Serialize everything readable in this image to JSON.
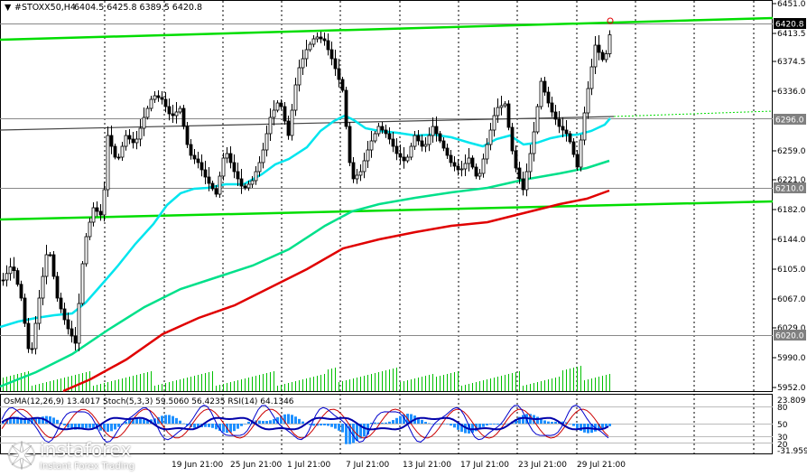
{
  "header": {
    "menu_arrow": "▼",
    "symbol": "#STOXX50,H4",
    "ohlc": "6404.5 6425.8 6389.5 6420.8"
  },
  "price_axis": [
    "6451.0",
    "6413.5",
    "6374.5",
    "6336.0",
    "6296.0",
    "6259.0",
    "6221.0",
    "6210.0",
    "6182.0",
    "6144.0",
    "6105.0",
    "6067.0",
    "6029.0",
    "6020.0",
    "5990.0",
    "5952.0"
  ],
  "price_tags": {
    "current": "6420.8",
    "level_1": "6296.0",
    "level_2": "6210.0",
    "level_3": "6020.0"
  },
  "indicator": {
    "title": "OsMA(12,26,9) 13.4017 Stoch(5,3,3) 59.5060 56.4235  RSI(14) 64.1346",
    "axis": [
      "23.809",
      "80",
      "50",
      "30",
      "20",
      "-31.959"
    ]
  },
  "time_axis": [
    "19 Jun 21:00",
    "25 Jun 21:00",
    "1 Jul 21:00",
    "7 Jul 21:00",
    "13 Jul 21:00",
    "17 Jul 21:00",
    "23 Jul 21:00",
    "29 Jul 21:00"
  ],
  "watermark": {
    "brand": "instaforex",
    "tagline": "Instant Forex Trading"
  },
  "colors": {
    "bullish_candle": "#000000",
    "ma_fast": "#00e5ee",
    "ma_mid": "#00e08a",
    "ma_slow": "#e00000",
    "channel": "#00dd00",
    "volume": "#00c000",
    "stoch_main": "#0000cc",
    "stoch_signal": "#cc0000",
    "osma": "#1e90ff",
    "tag_bg": "#808080"
  }
}
